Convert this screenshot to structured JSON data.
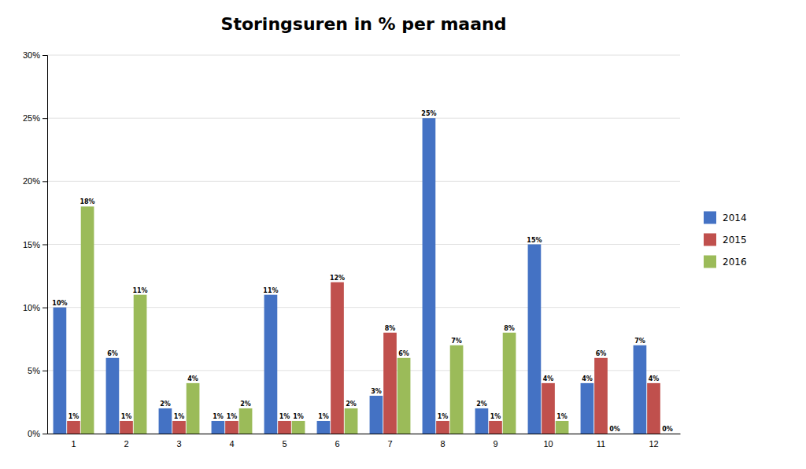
{
  "chart_data": {
    "type": "bar",
    "title": "Storingsuren in % per maand",
    "categories": [
      "1",
      "2",
      "3",
      "4",
      "5",
      "6",
      "7",
      "8",
      "9",
      "10",
      "11",
      "12"
    ],
    "series": [
      {
        "name": "2014",
        "color": "#4472C4",
        "values": [
          10,
          6,
          2,
          1,
          11,
          1,
          3,
          25,
          2,
          15,
          4,
          7
        ],
        "value_labels": [
          "10%",
          "6%",
          "2%",
          "1%",
          "11%",
          "1%",
          "3%",
          "25%",
          "2%",
          "15%",
          "4%",
          "7%"
        ]
      },
      {
        "name": "2015",
        "color": "#C0504D",
        "values": [
          1,
          1,
          1,
          1,
          1,
          12,
          8,
          1,
          1,
          4,
          6,
          4
        ],
        "value_labels": [
          "1%",
          "1%",
          "1%",
          "1%",
          "1%",
          "12%",
          "8%",
          "1%",
          "1%",
          "4%",
          "6%",
          "4%"
        ]
      },
      {
        "name": "2016",
        "color": "#9BBB59",
        "values": [
          18,
          11,
          4,
          2,
          1,
          2,
          6,
          7,
          8,
          1,
          0,
          0
        ],
        "value_labels": [
          "18%",
          "11%",
          "4%",
          "2%",
          "1%",
          "2%",
          "6%",
          "7%",
          "8%",
          "1%",
          "0%",
          "0%"
        ]
      }
    ],
    "ylim": [
      0,
      30
    ],
    "yticks": [
      {
        "value": 0,
        "label": "0%"
      },
      {
        "value": 5,
        "label": "5%"
      },
      {
        "value": 10,
        "label": "10%"
      },
      {
        "value": 15,
        "label": "15%"
      },
      {
        "value": 20,
        "label": "20%"
      },
      {
        "value": 25,
        "label": "25%"
      },
      {
        "value": 30,
        "label": "30%"
      }
    ],
    "grid": true,
    "legend": "right",
    "data_labels": true
  }
}
